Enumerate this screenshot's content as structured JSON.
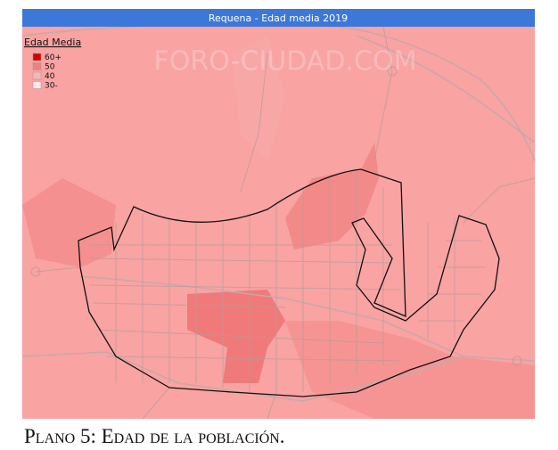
{
  "title": "Requena - Edad media 2019",
  "watermark": "FORO-CIUDAD.COM",
  "legend": {
    "title": "Edad Media",
    "items": [
      {
        "label": "60+",
        "color": "#d40000"
      },
      {
        "label": "50",
        "color": "#f08080"
      },
      {
        "label": "40",
        "color": "#f7b5b5"
      },
      {
        "label": "30-",
        "color": "#fde8e8"
      }
    ]
  },
  "caption": "Plano 5: Edad de la población."
}
